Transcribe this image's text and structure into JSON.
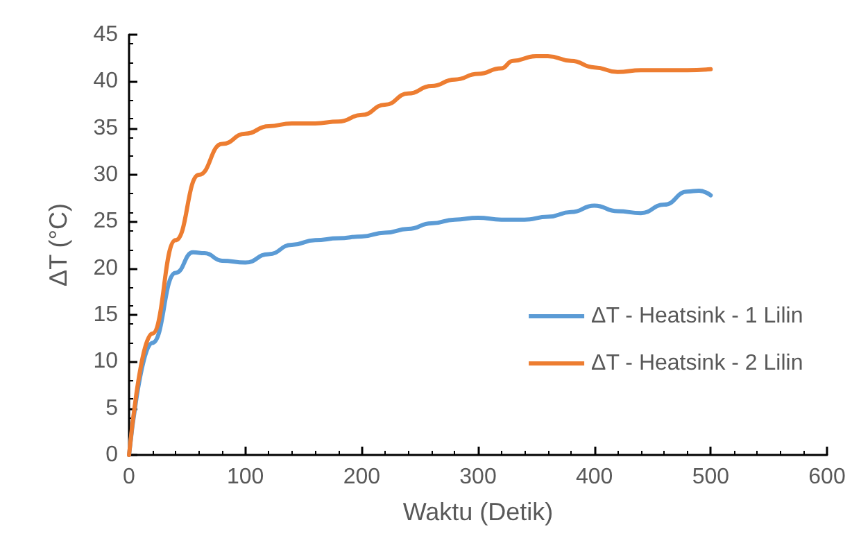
{
  "chart_data": {
    "type": "line",
    "xlabel": "Waktu (Detik)",
    "ylabel": "ΔT (°C)",
    "xlim": [
      0,
      600
    ],
    "xticks": [
      0,
      100,
      200,
      300,
      400,
      500,
      600
    ],
    "ylim": [
      0,
      45
    ],
    "yticks": [
      0,
      5,
      10,
      15,
      20,
      25,
      30,
      35,
      40,
      45
    ],
    "grid": false,
    "legend": "right",
    "marker": "none",
    "line_style": "solid",
    "series": [
      {
        "name": "ΔT - Heatsink - 1 Lilin",
        "color": "#5b9bd5",
        "x": [
          0,
          20,
          40,
          55,
          65,
          80,
          100,
          120,
          140,
          160,
          180,
          200,
          220,
          240,
          260,
          280,
          300,
          320,
          340,
          360,
          380,
          400,
          420,
          440,
          460,
          480,
          490,
          500
        ],
        "values": [
          0,
          12,
          19.5,
          21.7,
          21.6,
          20.8,
          20.6,
          21.5,
          22.5,
          23,
          23.2,
          23.4,
          23.8,
          24.2,
          24.8,
          25.2,
          25.4,
          25.2,
          25.2,
          25.5,
          26,
          26.7,
          26.1,
          25.9,
          26.8,
          28.2,
          28.3,
          27.8
        ]
      },
      {
        "name": "ΔT - Heatsink - 2 Lilin",
        "color": "#ed7d31",
        "x": [
          0,
          20,
          40,
          60,
          80,
          100,
          120,
          140,
          160,
          180,
          200,
          220,
          240,
          260,
          280,
          300,
          320,
          330,
          350,
          360,
          380,
          400,
          420,
          440,
          460,
          480,
          500
        ],
        "values": [
          0,
          13,
          23,
          30,
          33.3,
          34.4,
          35.2,
          35.5,
          35.5,
          35.7,
          36.4,
          37.5,
          38.7,
          39.5,
          40.2,
          40.8,
          41.4,
          42.2,
          42.7,
          42.7,
          42.2,
          41.5,
          41,
          41.2,
          41.2,
          41.2,
          41.3
        ]
      }
    ]
  }
}
